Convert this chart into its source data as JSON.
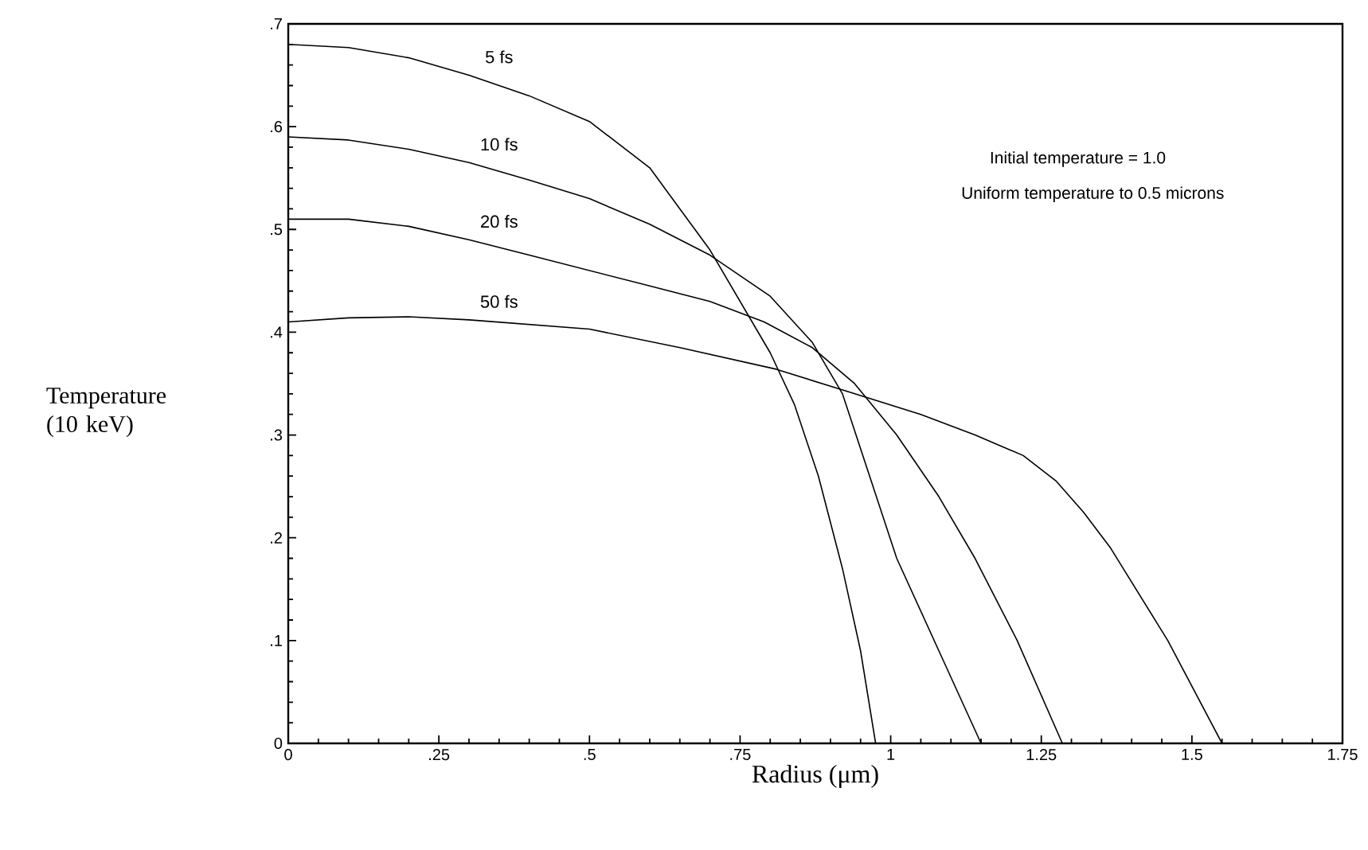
{
  "chart_data": {
    "type": "line",
    "xlabel": "Radius (μm)",
    "ylabel": "Temperature (10 keV)",
    "xlim": [
      0,
      1.75
    ],
    "ylim": [
      0,
      0.7
    ],
    "xticks": [
      0,
      {
        "value": 0.25,
        "label": ".25"
      },
      {
        "value": 0.5,
        "label": ".5"
      },
      {
        "value": 0.75,
        "label": ".75"
      },
      1,
      1.25,
      1.5,
      1.75
    ],
    "yticks": [
      0,
      {
        "value": 0.1,
        "label": ".1"
      },
      {
        "value": 0.2,
        "label": ".2"
      },
      {
        "value": 0.3,
        "label": ".3"
      },
      {
        "value": 0.4,
        "label": ".4"
      },
      {
        "value": 0.5,
        "label": ".5"
      },
      {
        "value": 0.6,
        "label": ".6"
      },
      {
        "value": 0.7,
        "label": ".7"
      }
    ],
    "grid": false,
    "legend": false,
    "marker": "none",
    "line_style": "solid",
    "annotations": [
      "Initial temperature = 1.0",
      "Uniform temperature to 0.5 microns"
    ],
    "series": [
      {
        "name": "5 fs",
        "color": "#000000",
        "x": [
          0,
          0.1,
          0.2,
          0.3,
          0.4,
          0.5,
          0.6,
          0.7,
          0.8,
          0.84,
          0.88,
          0.92,
          0.95,
          0.975
        ],
        "values": [
          0.68,
          0.677,
          0.667,
          0.65,
          0.63,
          0.605,
          0.56,
          0.48,
          0.38,
          0.33,
          0.26,
          0.17,
          0.09,
          0
        ]
      },
      {
        "name": "10 fs",
        "color": "#000000",
        "x": [
          0,
          0.1,
          0.2,
          0.3,
          0.4,
          0.5,
          0.6,
          0.7,
          0.8,
          0.87,
          0.92,
          1.01,
          1.08,
          1.15
        ],
        "values": [
          0.59,
          0.587,
          0.578,
          0.565,
          0.548,
          0.53,
          0.505,
          0.475,
          0.435,
          0.39,
          0.34,
          0.18,
          0.09,
          0
        ]
      },
      {
        "name": "20 fs",
        "color": "#000000",
        "x": [
          0,
          0.1,
          0.2,
          0.3,
          0.4,
          0.5,
          0.6,
          0.7,
          0.79,
          0.87,
          0.94,
          1.01,
          1.08,
          1.14,
          1.21,
          1.285
        ],
        "values": [
          0.51,
          0.51,
          0.503,
          0.49,
          0.475,
          0.46,
          0.445,
          0.43,
          0.41,
          0.385,
          0.35,
          0.3,
          0.24,
          0.18,
          0.1,
          0
        ]
      },
      {
        "name": "50 fs",
        "color": "#000000",
        "x": [
          0,
          0.1,
          0.2,
          0.3,
          0.5,
          0.65,
          0.81,
          0.93,
          1.05,
          1.14,
          1.22,
          1.275,
          1.32,
          1.365,
          1.46,
          1.55
        ],
        "values": [
          0.41,
          0.414,
          0.415,
          0.412,
          0.403,
          0.385,
          0.364,
          0.342,
          0.32,
          0.3,
          0.28,
          0.255,
          0.225,
          0.19,
          0.1,
          0
        ]
      }
    ]
  }
}
